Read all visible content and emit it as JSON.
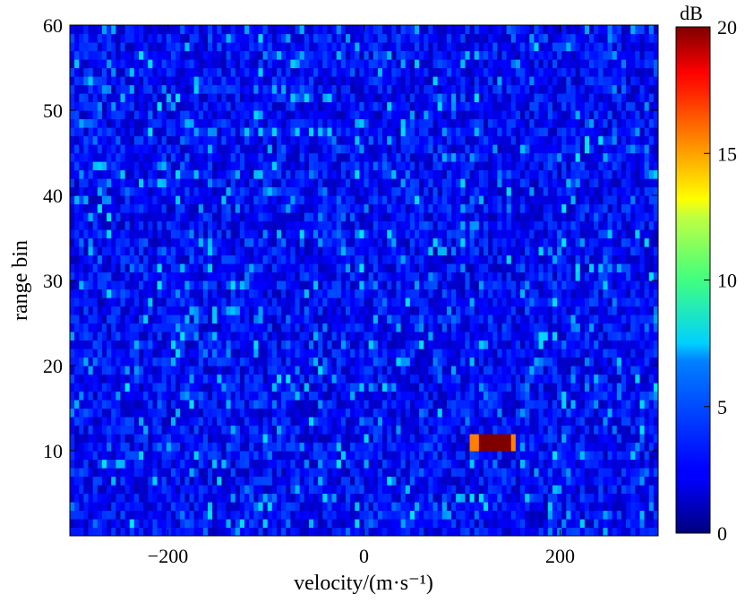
{
  "chart_data": {
    "type": "heatmap",
    "title": "",
    "xlabel": "velocity/(m·s⁻¹)",
    "ylabel": "range bin",
    "xlim": [
      -300,
      300
    ],
    "ylim": [
      0,
      60
    ],
    "xticks": [
      -200,
      0,
      200
    ],
    "xtick_labels": [
      "−200",
      "0",
      "200"
    ],
    "yticks": [
      10,
      20,
      30,
      40,
      50,
      60
    ],
    "ytick_labels": [
      "10",
      "20",
      "30",
      "40",
      "50",
      "60"
    ],
    "grid": false,
    "colormap": "jet",
    "colorbar": {
      "label": "dB",
      "range": [
        0,
        20
      ],
      "ticks": [
        0,
        5,
        10,
        15,
        20
      ],
      "tick_labels": [
        "0",
        "5",
        "10",
        "15",
        "20"
      ]
    },
    "background_noise": {
      "description_level_db": [
        1,
        4
      ],
      "peak_db": 7,
      "range_bins": [
        1,
        60
      ],
      "velocity_range": [
        -300,
        300
      ]
    },
    "target": {
      "peak_db": 20,
      "velocity_range": [
        110,
        155
      ],
      "range_bins": [
        10,
        12
      ]
    },
    "colors": {
      "low": "#1e2a78",
      "mid": "#2e6cb8",
      "high": "#8a1414"
    }
  }
}
